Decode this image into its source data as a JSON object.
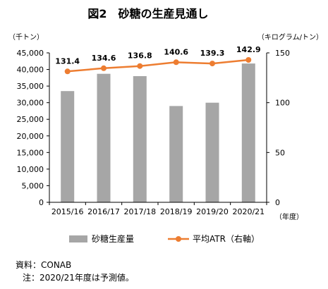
{
  "chart_data": {
    "type": "bar+line",
    "title": "図2　砂糖の生産見通し",
    "categories": [
      "2015/16",
      "2016/17",
      "2017/18",
      "2018/19",
      "2019/20",
      "2020/21"
    ],
    "x_axis_unit": "（年度）",
    "series": [
      {
        "name": "砂糖生産量",
        "type": "bar",
        "axis": "left",
        "color": "#a6a6a6",
        "values": [
          33500,
          38700,
          38000,
          29000,
          30000,
          41800
        ]
      },
      {
        "name": "平均ATR（右軸）",
        "type": "line",
        "axis": "right",
        "color": "#ed7d31",
        "values": [
          131.4,
          134.6,
          136.8,
          140.6,
          139.3,
          142.9
        ],
        "labels": [
          "131.4",
          "134.6",
          "136.8",
          "140.6",
          "139.3",
          "142.9"
        ]
      }
    ],
    "y_left": {
      "unit": "（千トン）",
      "ylim": [
        0,
        45000
      ],
      "ticks": [
        0,
        5000,
        10000,
        15000,
        20000,
        25000,
        30000,
        35000,
        40000,
        45000
      ],
      "tick_labels": [
        "0",
        "5,000",
        "10,000",
        "15,000",
        "20,000",
        "25,000",
        "30,000",
        "35,000",
        "40,000",
        "45,000"
      ]
    },
    "y_right": {
      "unit": "（キログラム/トン）",
      "ylim": [
        0,
        150
      ],
      "ticks": [
        0,
        50,
        100,
        150
      ],
      "tick_labels": [
        "0",
        "50",
        "100",
        "150"
      ]
    },
    "grid": false,
    "legend": "bottom"
  },
  "notes": {
    "source": "資料：CONAB",
    "note": "注：2020/21年度は予測値。"
  }
}
